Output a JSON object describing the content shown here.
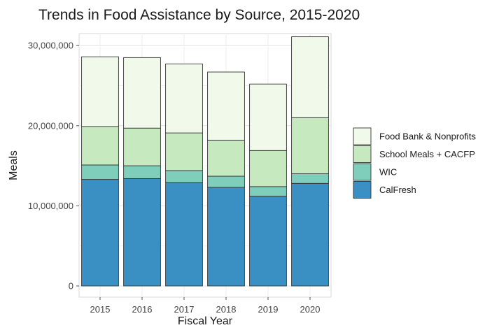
{
  "chart_data": {
    "type": "bar",
    "stacked": true,
    "title": "Trends in Food Assistance by Source, 2015-2020",
    "xlabel": "Fiscal Year",
    "ylabel": "Meals",
    "categories": [
      "2015",
      "2016",
      "2017",
      "2018",
      "2019",
      "2020"
    ],
    "ylim": [
      0,
      31500000
    ],
    "yticks": [
      0,
      10000000,
      20000000,
      30000000
    ],
    "ytick_labels": [
      "0",
      "10,000,000",
      "20,000,000",
      "30,000,000"
    ],
    "grid": true,
    "legend_position": "right",
    "series": [
      {
        "name": "CalFresh",
        "color": "#3a8fc3",
        "values": [
          13300000,
          13400000,
          12900000,
          12300000,
          11200000,
          12800000
        ]
      },
      {
        "name": "WIC",
        "color": "#7fcdbb",
        "values": [
          1800000,
          1600000,
          1500000,
          1400000,
          1200000,
          1200000
        ]
      },
      {
        "name": "School Meals + CACFP",
        "color": "#c7e9c0",
        "values": [
          4800000,
          4700000,
          4700000,
          4500000,
          4500000,
          7000000
        ]
      },
      {
        "name": "Food Bank & Nonprofits",
        "color": "#f1faea",
        "values": [
          8700000,
          8800000,
          8600000,
          8500000,
          8300000,
          10100000
        ]
      }
    ],
    "legend_order": [
      "Food Bank & Nonprofits",
      "School Meals + CACFP",
      "WIC",
      "CalFresh"
    ]
  }
}
